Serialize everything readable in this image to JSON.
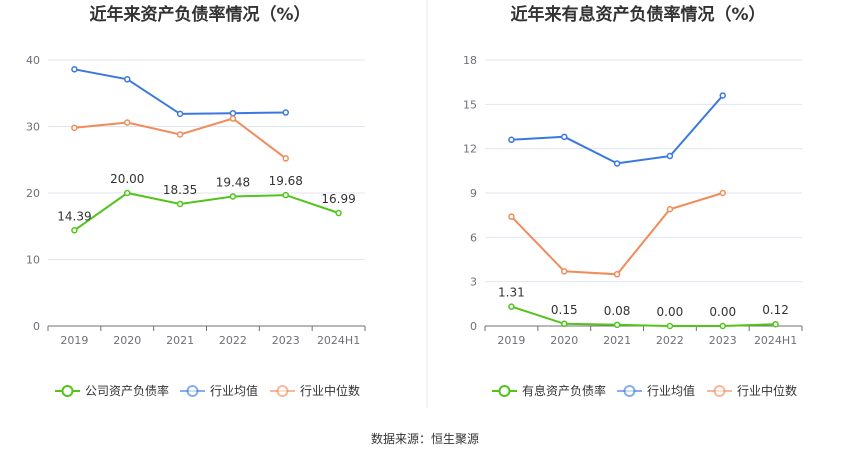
{
  "colors": {
    "company": "#52c41a",
    "industry_avg": "#3a78e0",
    "industry_median": "#f08c5a",
    "grid": "#e0e6f1",
    "axis": "#6e7079",
    "divider": "#e8e8e8"
  },
  "source": "数据来源：恒生聚源",
  "chart_data": [
    {
      "type": "line",
      "title": "近年来资产负债率情况（%）",
      "categories": [
        "2019",
        "2020",
        "2021",
        "2022",
        "2023",
        "2024H1"
      ],
      "ylim": [
        0,
        40
      ],
      "yticks": [
        0,
        10,
        20,
        30,
        40
      ],
      "grid": true,
      "legend_position": "bottom",
      "series": [
        {
          "name": "公司资产负债率",
          "key": "company",
          "values": [
            14.39,
            20.0,
            18.35,
            19.48,
            19.68,
            16.99
          ],
          "labels": [
            "14.39",
            "20.00",
            "18.35",
            "19.48",
            "19.68",
            "16.99"
          ]
        },
        {
          "name": "行业均值",
          "key": "industry_avg",
          "values": [
            38.6,
            37.1,
            31.9,
            32.0,
            32.1,
            null
          ]
        },
        {
          "name": "行业中位数",
          "key": "industry_median",
          "values": [
            29.8,
            30.6,
            28.8,
            31.2,
            25.2,
            null
          ]
        }
      ]
    },
    {
      "type": "line",
      "title": "近年来有息资产负债率情况（%）",
      "categories": [
        "2019",
        "2020",
        "2021",
        "2022",
        "2023",
        "2024H1"
      ],
      "ylim": [
        0,
        18
      ],
      "yticks": [
        0,
        3,
        6,
        9,
        12,
        15,
        18
      ],
      "grid": true,
      "legend_position": "bottom",
      "series": [
        {
          "name": "有息资产负债率",
          "key": "company",
          "values": [
            1.31,
            0.15,
            0.08,
            0.0,
            0.0,
            0.12
          ],
          "labels": [
            "1.31",
            "0.15",
            "0.08",
            "0.00",
            "0.00",
            "0.12"
          ]
        },
        {
          "name": "行业均值",
          "key": "industry_avg",
          "values": [
            12.6,
            12.8,
            11.0,
            11.5,
            15.6,
            null
          ]
        },
        {
          "name": "行业中位数",
          "key": "industry_median",
          "values": [
            7.4,
            3.7,
            3.5,
            7.9,
            9.0,
            null
          ]
        }
      ]
    }
  ]
}
